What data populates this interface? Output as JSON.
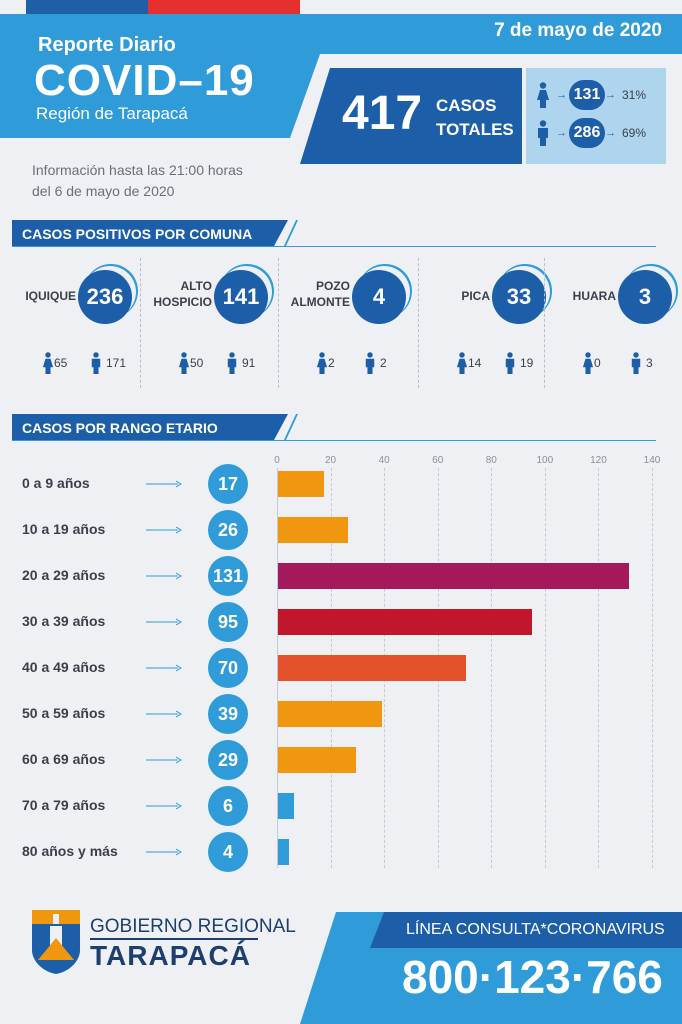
{
  "header": {
    "date": "7 de mayo de 2020",
    "report_label": "Reporte Diario",
    "title": "COVID–19",
    "region": "Región de Tarapacá",
    "info_line1": "Información hasta las 21:00 horas",
    "info_line2": "del 6 de mayo de 2020"
  },
  "totals": {
    "total": "417",
    "label_line1": "CASOS",
    "label_line2": "TOTALES",
    "female": {
      "count": "131",
      "pct": "31%",
      "icon": "female-person-icon"
    },
    "male": {
      "count": "286",
      "pct": "69%",
      "icon": "male-person-icon"
    }
  },
  "communes_section": {
    "title": "CASOS POSITIVOS POR COMUNA",
    "items": [
      {
        "name1": "IQUIQUE",
        "name2": "",
        "total": "236",
        "female": "65",
        "male": "171"
      },
      {
        "name1": "ALTO",
        "name2": "HOSPICIO",
        "total": "141",
        "female": "50",
        "male": "91"
      },
      {
        "name1": "POZO",
        "name2": "ALMONTE",
        "total": "4",
        "female": "2",
        "male": "2"
      },
      {
        "name1": "PICA",
        "name2": "",
        "total": "33",
        "female": "14",
        "male": "19"
      },
      {
        "name1": "HUARA",
        "name2": "",
        "total": "3",
        "female": "0",
        "male": "3"
      }
    ]
  },
  "age_section": {
    "title": "CASOS POR RANGO ETARIO"
  },
  "chart_data": {
    "type": "bar",
    "orientation": "horizontal",
    "categories": [
      "0 a 9 años",
      "10 a 19 años",
      "20 a 29 años",
      "30 a 39 años",
      "40 a 49 años",
      "50 a 59 años",
      "60 a 69 años",
      "70 a 79 años",
      "80 años y más"
    ],
    "values": [
      17,
      26,
      131,
      95,
      70,
      39,
      29,
      6,
      4
    ],
    "value_labels": [
      "17",
      "26",
      "131",
      "95",
      "70",
      "39",
      "29",
      "6",
      "4"
    ],
    "colors": [
      "#f0960f",
      "#f0960f",
      "#a3195b",
      "#c1172c",
      "#e4522b",
      "#f0960f",
      "#f0960f",
      "#2f9bd8",
      "#2f9bd8"
    ],
    "xlim": [
      0,
      140
    ],
    "ticks": [
      "0",
      "20",
      "40",
      "60",
      "80",
      "100",
      "120",
      "140"
    ],
    "grid": true
  },
  "footer": {
    "gov_line1": "GOBIERNO REGIONAL",
    "gov_line2": "TARAPACÁ",
    "hotline_label": "LÍNEA CONSULTA*CORONAVIRUS",
    "phone": "800·123·766",
    "colors": {
      "dark_blue": "#1d5ea8",
      "light_blue": "#2f9bd8",
      "red": "#e4312f"
    }
  }
}
